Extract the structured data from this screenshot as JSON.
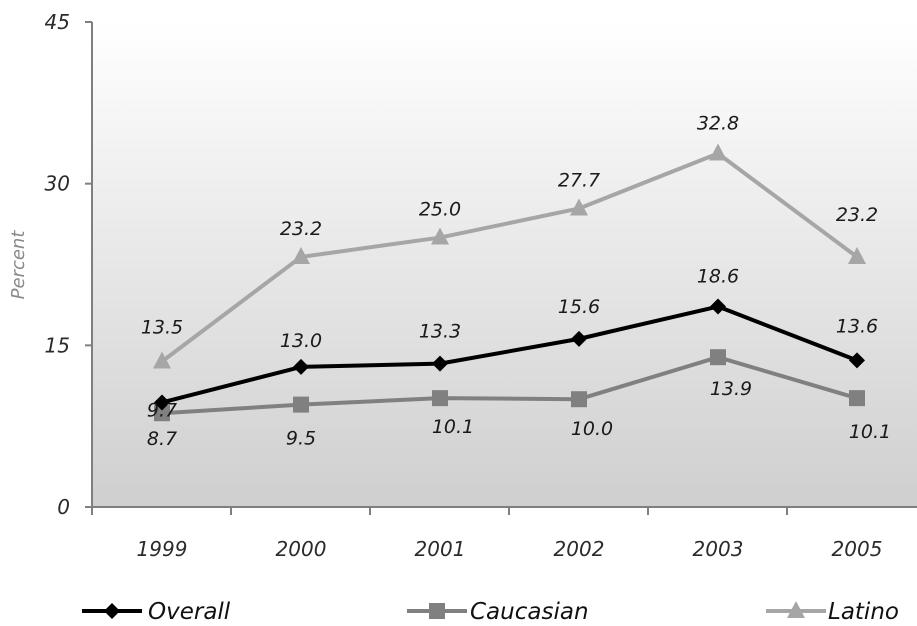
{
  "chart_data": {
    "type": "line",
    "title": "",
    "xlabel": "",
    "ylabel": "Percent",
    "categories": [
      "1999",
      "2000",
      "2001",
      "2002",
      "2003",
      "2005"
    ],
    "ylim": [
      0,
      45
    ],
    "yticks": [
      "0",
      "15",
      "30",
      "45"
    ],
    "grid": false,
    "legend_position": "bottom",
    "series": [
      {
        "name": "Overall",
        "values": [
          9.7,
          13.0,
          13.3,
          15.6,
          18.6,
          13.6
        ],
        "labels": [
          "9.7",
          "13.0",
          "13.3",
          "15.6",
          "18.6",
          "13.6"
        ],
        "color": "#000000",
        "marker": "diamond"
      },
      {
        "name": "Caucasian",
        "values": [
          8.7,
          9.5,
          10.1,
          10.0,
          13.9,
          10.1
        ],
        "labels": [
          "8.7",
          "9.5",
          "10.1",
          "10.0",
          "13.9",
          "10.1"
        ],
        "color": "#808080",
        "marker": "square"
      },
      {
        "name": "Latino",
        "values": [
          13.5,
          23.2,
          25.0,
          27.7,
          32.8,
          23.2
        ],
        "labels": [
          "13.5",
          "23.2",
          "25.0",
          "27.7",
          "32.8",
          "23.2"
        ],
        "color": "#a6a6a6",
        "marker": "triangle"
      }
    ]
  }
}
